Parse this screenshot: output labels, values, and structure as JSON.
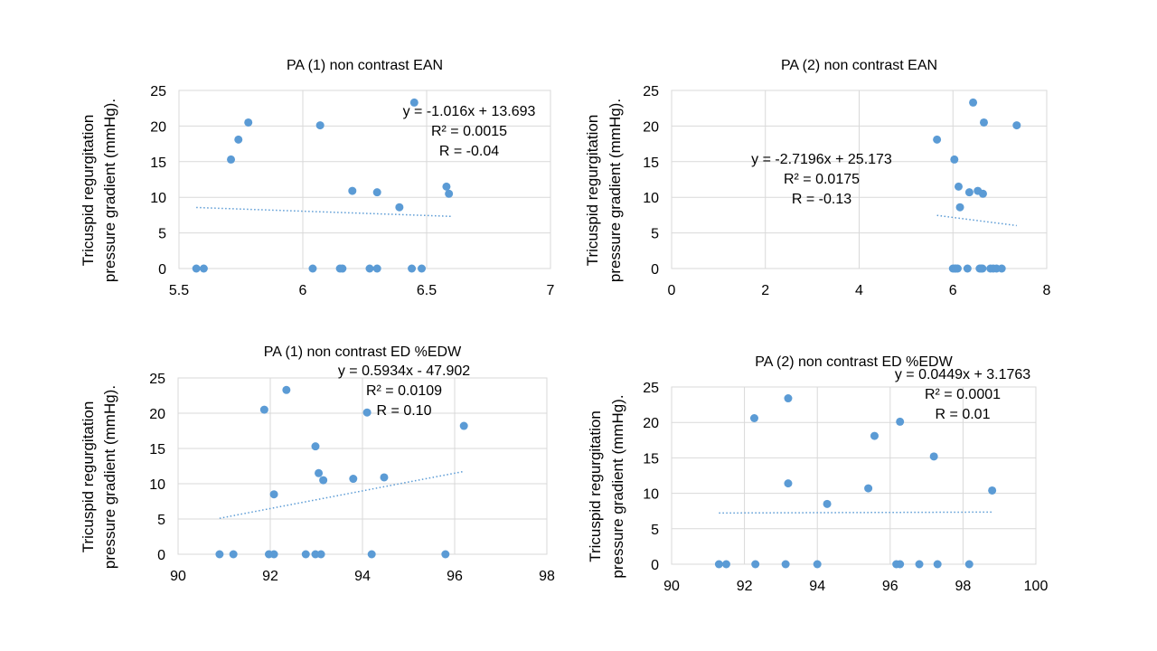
{
  "colors": {
    "marker": "#5B9BD5",
    "trendline": "#5B9BD5",
    "gridline": "#D9D9D9",
    "text": "#000000",
    "background": "#FFFFFF"
  },
  "chart_data": [
    {
      "type": "scatter",
      "title": "PA (1) non contrast EAN",
      "ylabel": [
        "Tricuspid regurgitation",
        "pressure gradient (mmHg)."
      ],
      "xlabel": "",
      "xlim": [
        5.5,
        7
      ],
      "ylim": [
        0,
        25
      ],
      "xticks": [
        5.5,
        6,
        6.5,
        7
      ],
      "xtick_labels": [
        "5.5",
        "6",
        "6.5",
        "7"
      ],
      "yticks": [
        0,
        5,
        10,
        15,
        20,
        25
      ],
      "ytick_labels": [
        "0",
        "5",
        "10",
        "15",
        "20",
        "25"
      ],
      "grid": true,
      "points": [
        {
          "x": 5.57,
          "y": 0
        },
        {
          "x": 5.6,
          "y": 0
        },
        {
          "x": 5.71,
          "y": 15.3
        },
        {
          "x": 5.74,
          "y": 18.1
        },
        {
          "x": 5.78,
          "y": 20.5
        },
        {
          "x": 6.04,
          "y": 0
        },
        {
          "x": 6.07,
          "y": 20.1
        },
        {
          "x": 6.15,
          "y": 0
        },
        {
          "x": 6.16,
          "y": 0
        },
        {
          "x": 6.2,
          "y": 10.9
        },
        {
          "x": 6.27,
          "y": 0
        },
        {
          "x": 6.3,
          "y": 10.7
        },
        {
          "x": 6.3,
          "y": 0
        },
        {
          "x": 6.39,
          "y": 8.6
        },
        {
          "x": 6.44,
          "y": 0
        },
        {
          "x": 6.45,
          "y": 23.3
        },
        {
          "x": 6.48,
          "y": 0
        },
        {
          "x": 6.58,
          "y": 11.5
        },
        {
          "x": 6.59,
          "y": 10.5
        }
      ],
      "trendline": {
        "x_start": 5.57,
        "x_end": 6.6
      },
      "annotation": [
        "y = -1.016x + 13.693",
        "R² = 0.0015",
        "R = -0.04"
      ]
    },
    {
      "type": "scatter",
      "title": "PA (2)  non contrast EAN",
      "ylabel": [
        "Tricuspid regurgitation",
        "pressure gradient (mmHg)."
      ],
      "xlabel": "",
      "xlim": [
        0,
        8
      ],
      "ylim": [
        0,
        25
      ],
      "xticks": [
        0,
        2,
        4,
        6,
        8
      ],
      "xtick_labels": [
        "0",
        "2",
        "4",
        "6",
        "8"
      ],
      "yticks": [
        0,
        5,
        10,
        15,
        20,
        25
      ],
      "ytick_labels": [
        "0",
        "5",
        "10",
        "15",
        "20",
        "25"
      ],
      "grid": true,
      "points": [
        {
          "x": 5.66,
          "y": 18.1
        },
        {
          "x": 6.0,
          "y": 0
        },
        {
          "x": 6.03,
          "y": 15.3
        },
        {
          "x": 6.04,
          "y": 0
        },
        {
          "x": 6.06,
          "y": 0
        },
        {
          "x": 6.1,
          "y": 0
        },
        {
          "x": 6.12,
          "y": 11.5
        },
        {
          "x": 6.15,
          "y": 8.6
        },
        {
          "x": 6.31,
          "y": 0
        },
        {
          "x": 6.35,
          "y": 10.7
        },
        {
          "x": 6.43,
          "y": 23.3
        },
        {
          "x": 6.53,
          "y": 10.9
        },
        {
          "x": 6.57,
          "y": 0
        },
        {
          "x": 6.6,
          "y": 0
        },
        {
          "x": 6.63,
          "y": 0
        },
        {
          "x": 6.64,
          "y": 10.5
        },
        {
          "x": 6.66,
          "y": 20.5
        },
        {
          "x": 6.8,
          "y": 0
        },
        {
          "x": 6.86,
          "y": 0
        },
        {
          "x": 6.93,
          "y": 0
        },
        {
          "x": 7.04,
          "y": 0
        },
        {
          "x": 7.36,
          "y": 20.1
        }
      ],
      "trendline": {
        "x_start": 5.66,
        "x_end": 7.36
      },
      "annotation": [
        "y = -2.7196x + 25.173",
        "R² = 0.0175",
        "R = -0.13"
      ]
    },
    {
      "type": "scatter",
      "title": "PA (1) non contrast ED %EDW",
      "ylabel": [
        "Tricuspid regurgitation",
        "pressure gradient (mmHg)."
      ],
      "xlabel": "",
      "xlim": [
        90,
        98
      ],
      "ylim": [
        0,
        25
      ],
      "xticks": [
        90,
        92,
        94,
        96,
        98
      ],
      "xtick_labels": [
        "90",
        "92",
        "94",
        "96",
        "98"
      ],
      "yticks": [
        0,
        5,
        10,
        15,
        20,
        25
      ],
      "ytick_labels": [
        "0",
        "5",
        "10",
        "15",
        "20",
        "25"
      ],
      "grid": true,
      "points": [
        {
          "x": 90.9,
          "y": 0
        },
        {
          "x": 91.2,
          "y": 0
        },
        {
          "x": 91.87,
          "y": 20.5
        },
        {
          "x": 91.97,
          "y": 0
        },
        {
          "x": 92.08,
          "y": 0
        },
        {
          "x": 92.08,
          "y": 8.5
        },
        {
          "x": 92.35,
          "y": 23.3
        },
        {
          "x": 92.77,
          "y": 0
        },
        {
          "x": 92.98,
          "y": 15.3
        },
        {
          "x": 92.98,
          "y": 0
        },
        {
          "x": 93.05,
          "y": 11.5
        },
        {
          "x": 93.1,
          "y": 0
        },
        {
          "x": 93.15,
          "y": 10.5
        },
        {
          "x": 93.8,
          "y": 10.7
        },
        {
          "x": 94.1,
          "y": 20.1
        },
        {
          "x": 94.2,
          "y": 0
        },
        {
          "x": 94.47,
          "y": 10.9
        },
        {
          "x": 95.8,
          "y": 0
        },
        {
          "x": 96.2,
          "y": 18.2
        }
      ],
      "trendline": {
        "x_start": 90.9,
        "x_end": 96.2
      },
      "annotation": [
        "y = 0.5934x - 47.902",
        "R² = 0.0109",
        "R = 0.10"
      ]
    },
    {
      "type": "scatter",
      "title": "PA (2) non contrast ED %EDW",
      "ylabel": [
        "Tricuspid regurgitation",
        "pressure gradient (mmHg)."
      ],
      "xlabel": "",
      "xlim": [
        90,
        100
      ],
      "ylim": [
        0,
        25
      ],
      "xticks": [
        90,
        92,
        94,
        96,
        98,
        100
      ],
      "xtick_labels": [
        "90",
        "92",
        "94",
        "96",
        "98",
        "100"
      ],
      "yticks": [
        0,
        5,
        10,
        15,
        20,
        25
      ],
      "ytick_labels": [
        "0",
        "5",
        "10",
        "15",
        "20",
        "25"
      ],
      "grid": true,
      "points": [
        {
          "x": 91.3,
          "y": 0
        },
        {
          "x": 91.5,
          "y": 0
        },
        {
          "x": 92.27,
          "y": 20.6
        },
        {
          "x": 92.3,
          "y": 0
        },
        {
          "x": 93.13,
          "y": 0
        },
        {
          "x": 93.2,
          "y": 23.4
        },
        {
          "x": 93.2,
          "y": 11.4
        },
        {
          "x": 94.0,
          "y": 0
        },
        {
          "x": 94.27,
          "y": 8.5
        },
        {
          "x": 95.4,
          "y": 10.7
        },
        {
          "x": 95.57,
          "y": 18.1
        },
        {
          "x": 96.17,
          "y": 0
        },
        {
          "x": 96.27,
          "y": 0
        },
        {
          "x": 96.27,
          "y": 20.1
        },
        {
          "x": 96.8,
          "y": 0
        },
        {
          "x": 97.2,
          "y": 15.2
        },
        {
          "x": 97.3,
          "y": 0
        },
        {
          "x": 98.17,
          "y": 0
        },
        {
          "x": 98.8,
          "y": 10.4
        }
      ],
      "trendline": {
        "x_start": 91.3,
        "x_end": 98.8
      },
      "annotation": [
        "y = 0.0449x + 3.1763",
        "R² = 0.0001",
        "R = 0.01"
      ]
    }
  ]
}
